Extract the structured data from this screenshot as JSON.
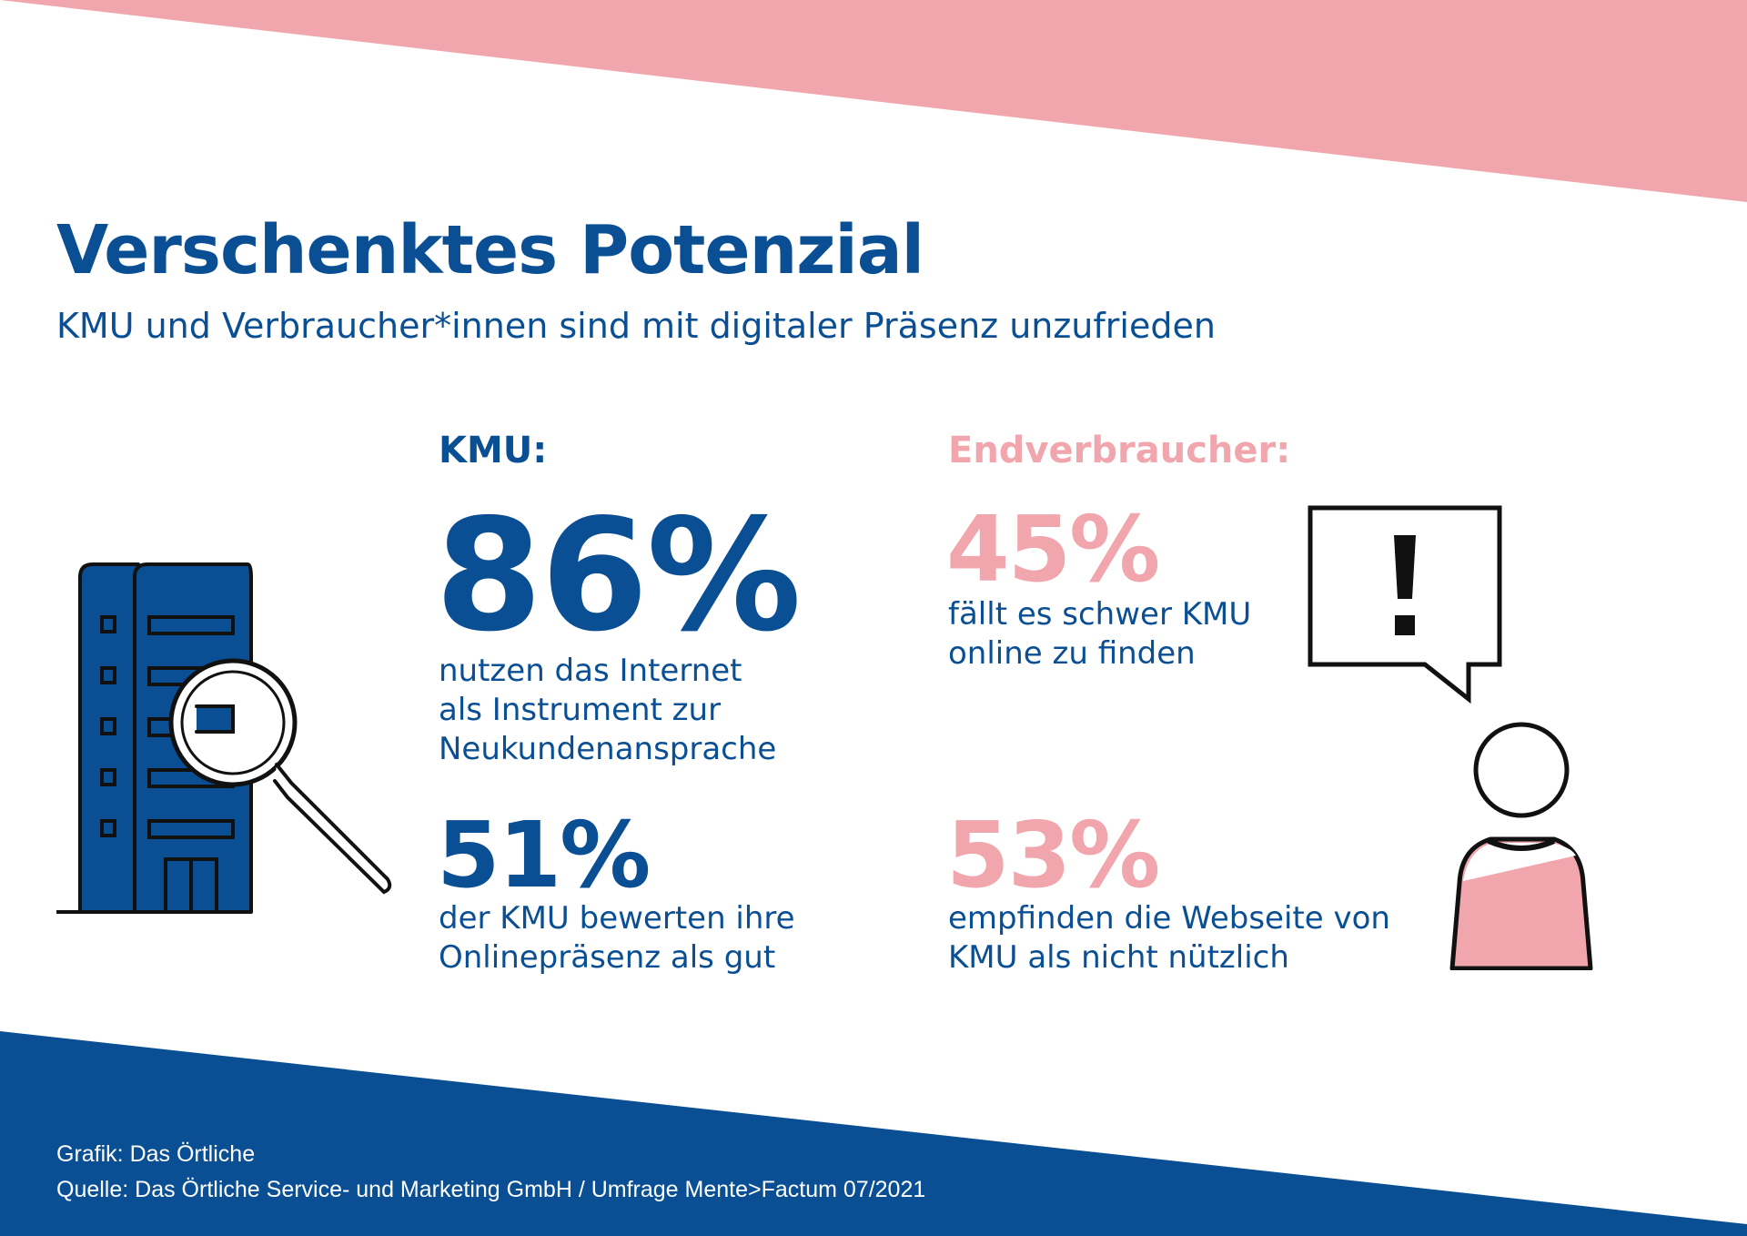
{
  "header": {
    "title": "Verschenktes Potenzial",
    "subtitle": "KMU und Verbraucher*innen sind mit digitaler Präsenz unzufrieden"
  },
  "kmu": {
    "heading": "KMU:",
    "stats": [
      {
        "value": "86%",
        "description": "nutzen das Internet\nals Instrument zur\nNeukundenansprache"
      },
      {
        "value": "51%",
        "description": "der KMU bewerten ihre\nOnlinepräsenz als gut"
      }
    ]
  },
  "consumers": {
    "heading": "Endverbraucher:",
    "stats": [
      {
        "value": "45%",
        "description": "fällt es schwer KMU\nonline zu finden"
      },
      {
        "value": "53%",
        "description": "empfinden die Webseite von\nKMU als nicht nützlich"
      }
    ]
  },
  "footer": {
    "graphic": "Grafik:  Das Örtliche",
    "source": "Quelle: Das Örtliche Service- und Marketing GmbH / Umfrage Mente>Factum 07/2021"
  },
  "icons": {
    "left": "building-with-magnifier-icon",
    "speech": "speech-bubble-exclamation-icon",
    "person": "person-icon"
  },
  "colors": {
    "brand_blue": "#0a4f94",
    "accent_pink": "#f0a6ac"
  }
}
